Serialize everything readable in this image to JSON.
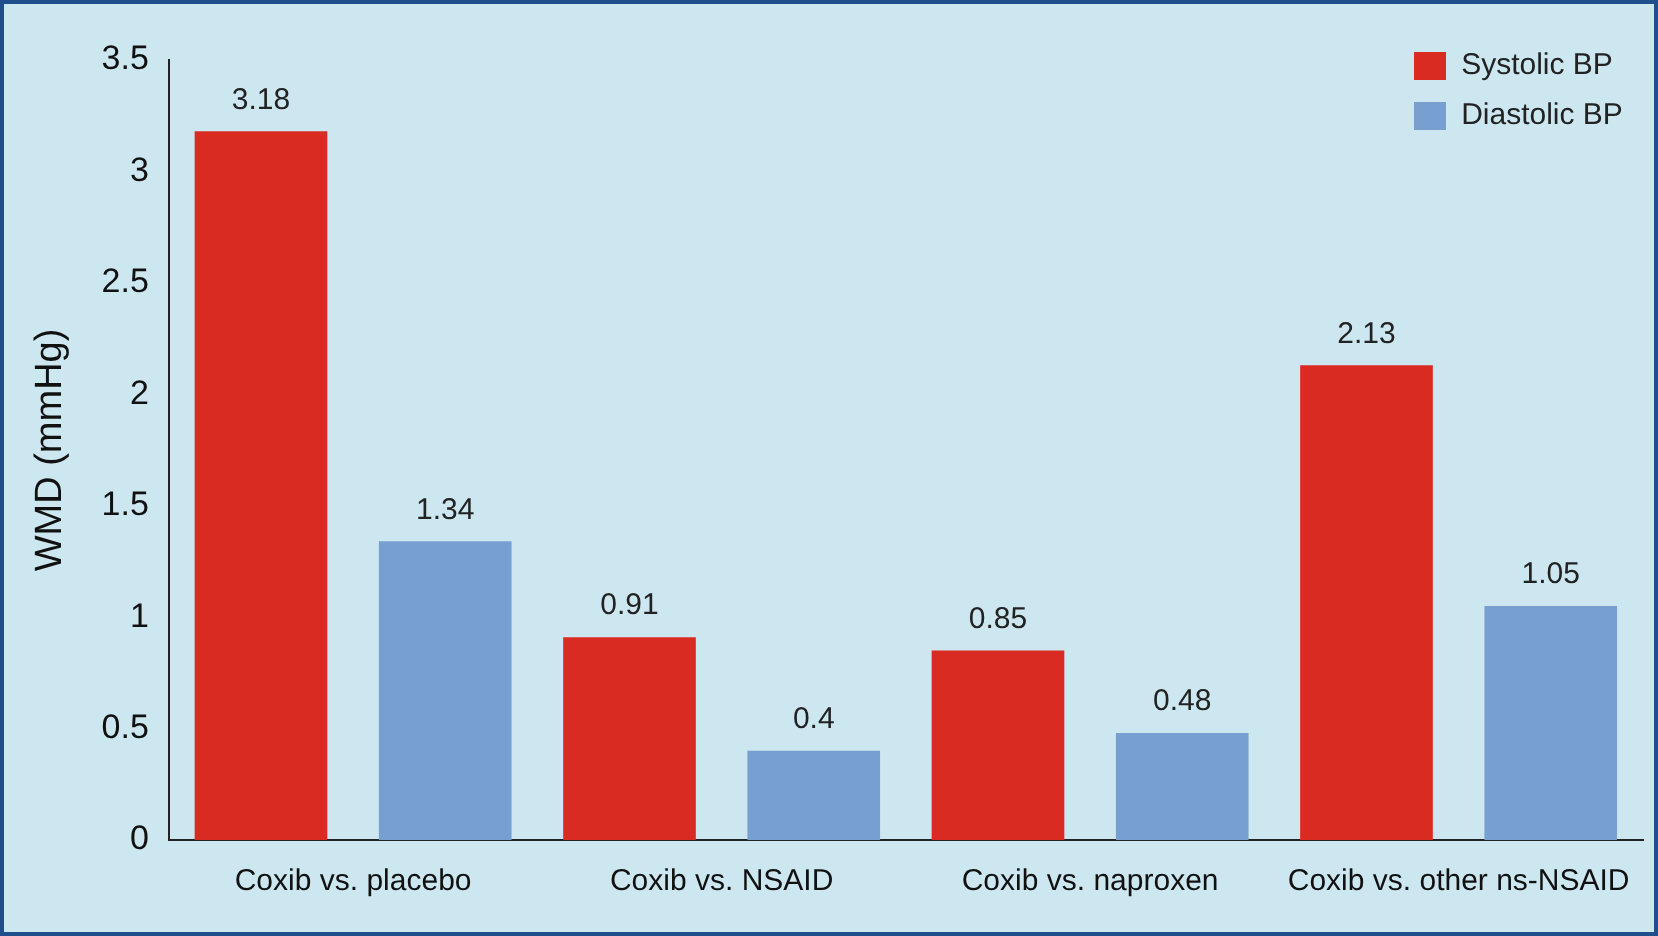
{
  "chart_data": {
    "type": "bar",
    "ylabel": "WMD (mmHg)",
    "categories": [
      "Coxib vs. placebo",
      "Coxib vs. NSAID",
      "Coxib vs. naproxen",
      "Coxib vs. other ns-NSAID"
    ],
    "series": [
      {
        "name": "Systolic BP",
        "color": "#d92b21",
        "values": [
          3.18,
          0.91,
          0.85,
          2.13
        ]
      },
      {
        "name": "Diastolic BP",
        "color": "#77a0d0",
        "values": [
          1.34,
          0.4,
          0.48,
          1.05
        ]
      }
    ],
    "ylim": [
      0,
      3.5
    ],
    "yticks": [
      0,
      0.5,
      1,
      1.5,
      2,
      2.5,
      3,
      3.5
    ],
    "grid": false,
    "legend": "top right",
    "data_labels": true
  }
}
